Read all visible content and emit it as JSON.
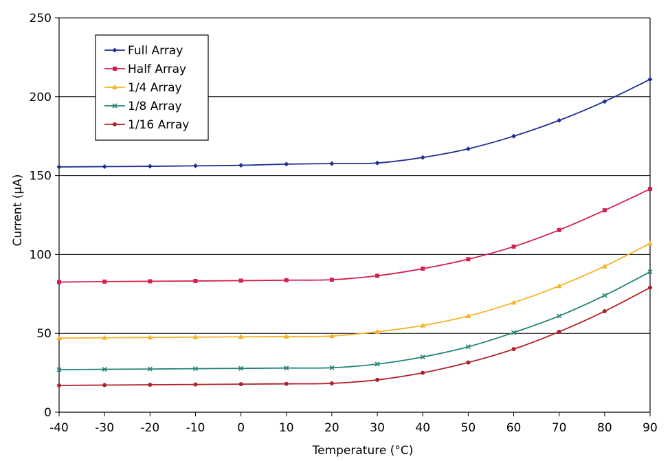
{
  "chart_data": {
    "type": "line",
    "title": "",
    "xlabel": "Temperature (°C)",
    "ylabel": "Current (μA)",
    "xlim": [
      -40,
      90
    ],
    "ylim": [
      0,
      250
    ],
    "xticks": [
      -40,
      -30,
      -20,
      -10,
      0,
      10,
      20,
      30,
      40,
      50,
      60,
      70,
      80,
      90
    ],
    "yticks": [
      0,
      50,
      100,
      150,
      200,
      250
    ],
    "grid": "horizontal",
    "legend_position": "top-left",
    "x": [
      -40,
      -30,
      -20,
      -10,
      0,
      10,
      20,
      30,
      40,
      50,
      60,
      70,
      80,
      90
    ],
    "series": [
      {
        "name": "Full Array",
        "color": "#1f2f8f",
        "marker": "diamond",
        "values": [
          155.5,
          155.7,
          155.9,
          156.2,
          156.5,
          157.3,
          157.6,
          158.0,
          161.5,
          167.0,
          175.0,
          185.0,
          197.0,
          211.0
        ]
      },
      {
        "name": "Half Array",
        "color": "#d41f4e",
        "marker": "square",
        "values": [
          82.5,
          82.8,
          83.0,
          83.2,
          83.4,
          83.7,
          84.0,
          86.5,
          91.0,
          97.0,
          105.0,
          115.5,
          128.0,
          141.5
        ]
      },
      {
        "name": "1/4 Array",
        "color": "#f6b226",
        "marker": "triangle",
        "values": [
          47.0,
          47.2,
          47.4,
          47.6,
          47.8,
          48.0,
          48.3,
          51.0,
          55.0,
          61.0,
          69.5,
          80.0,
          92.5,
          107.0
        ]
      },
      {
        "name": "1/8 Array",
        "color": "#218377",
        "marker": "x",
        "values": [
          27.0,
          27.2,
          27.4,
          27.6,
          27.8,
          28.0,
          28.2,
          30.5,
          35.0,
          41.5,
          50.5,
          61.0,
          74.0,
          89.0
        ]
      },
      {
        "name": "1/16 Array",
        "color": "#b0202a",
        "marker": "circle",
        "values": [
          17.0,
          17.2,
          17.4,
          17.6,
          17.8,
          18.0,
          18.3,
          20.5,
          25.0,
          31.5,
          40.0,
          51.0,
          64.0,
          79.0
        ]
      }
    ]
  }
}
